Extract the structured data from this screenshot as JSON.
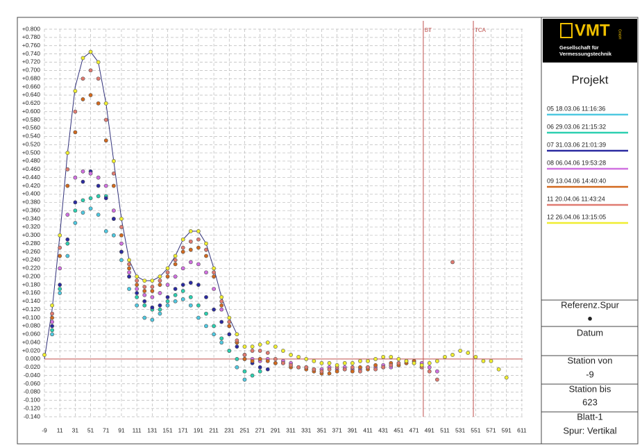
{
  "chart_data": {
    "type": "scatter",
    "x": [
      -9,
      1,
      11,
      21,
      31,
      41,
      51,
      61,
      71,
      81,
      91,
      101,
      111,
      121,
      131,
      141,
      151,
      161,
      171,
      181,
      191,
      201,
      211,
      221,
      231,
      241,
      251,
      261,
      271,
      281,
      291,
      301,
      311,
      321,
      331,
      341,
      351,
      361,
      371,
      381,
      391,
      401,
      411,
      421,
      431,
      441,
      451,
      461,
      471,
      481,
      491,
      501,
      511,
      521,
      531,
      541,
      551,
      561,
      571,
      581,
      591,
      601
    ],
    "xlim": [
      -9,
      621
    ],
    "ylim": [
      -0.14,
      0.8
    ],
    "xticks": [
      -9,
      11,
      31,
      51,
      71,
      91,
      111,
      131,
      151,
      171,
      191,
      211,
      231,
      251,
      271,
      291,
      311,
      331,
      351,
      371,
      391,
      411,
      431,
      451,
      471,
      491,
      511,
      531,
      551,
      571,
      591,
      611
    ],
    "yticks": [
      {
        "value": 0.8,
        "label": "+0.800"
      },
      {
        "value": 0.78,
        "label": "+0.780"
      },
      {
        "value": 0.76,
        "label": "+0.760"
      },
      {
        "value": 0.74,
        "label": "+0.740"
      },
      {
        "value": 0.72,
        "label": "+0.720"
      },
      {
        "value": 0.7,
        "label": "+0.700"
      },
      {
        "value": 0.68,
        "label": "+0.680"
      },
      {
        "value": 0.66,
        "label": "+0.660"
      },
      {
        "value": 0.64,
        "label": "+0.640"
      },
      {
        "value": 0.62,
        "label": "+0.620"
      },
      {
        "value": 0.6,
        "label": "+0.600"
      },
      {
        "value": 0.58,
        "label": "+0.580"
      },
      {
        "value": 0.56,
        "label": "+0.560"
      },
      {
        "value": 0.54,
        "label": "+0.540"
      },
      {
        "value": 0.52,
        "label": "+0.520"
      },
      {
        "value": 0.5,
        "label": "+0.500"
      },
      {
        "value": 0.48,
        "label": "+0.480"
      },
      {
        "value": 0.46,
        "label": "+0.460"
      },
      {
        "value": 0.44,
        "label": "+0.440"
      },
      {
        "value": 0.42,
        "label": "+0.420"
      },
      {
        "value": 0.4,
        "label": "+0.400"
      },
      {
        "value": 0.38,
        "label": "+0.380"
      },
      {
        "value": 0.36,
        "label": "+0.360"
      },
      {
        "value": 0.34,
        "label": "+0.340"
      },
      {
        "value": 0.32,
        "label": "+0.320"
      },
      {
        "value": 0.3,
        "label": "+0.300"
      },
      {
        "value": 0.28,
        "label": "+0.280"
      },
      {
        "value": 0.26,
        "label": "+0.260"
      },
      {
        "value": 0.24,
        "label": "+0.240"
      },
      {
        "value": 0.22,
        "label": "+0.220"
      },
      {
        "value": 0.2,
        "label": "+0.200"
      },
      {
        "value": 0.18,
        "label": "+0.180"
      },
      {
        "value": 0.16,
        "label": "+0.160"
      },
      {
        "value": 0.14,
        "label": "+0.140"
      },
      {
        "value": 0.12,
        "label": "+0.120"
      },
      {
        "value": 0.1,
        "label": "+0.100"
      },
      {
        "value": 0.08,
        "label": "+0.080"
      },
      {
        "value": 0.06,
        "label": "+0.060"
      },
      {
        "value": 0.04,
        "label": "+0.040"
      },
      {
        "value": 0.02,
        "label": "+0.020"
      },
      {
        "value": 0,
        "label": "0.000"
      },
      {
        "value": -0.02,
        "label": "-0.020"
      },
      {
        "value": -0.04,
        "label": "-0.040"
      },
      {
        "value": -0.06,
        "label": "-0.060"
      },
      {
        "value": -0.08,
        "label": "-0.080"
      },
      {
        "value": -0.1,
        "label": "-0.100"
      },
      {
        "value": -0.12,
        "label": "-0.120"
      },
      {
        "value": -0.14,
        "label": "-0.140"
      }
    ],
    "grid": true,
    "zero_line_color": "#c0504d",
    "markers": [
      {
        "label": "BT",
        "x": 483,
        "color": "#c0504d"
      },
      {
        "label": "TCA",
        "x": 548,
        "color": "#c0504d"
      }
    ],
    "reference": {
      "color": "#30307a",
      "x": [
        -9,
        1,
        11,
        21,
        31,
        41,
        51,
        61,
        71,
        81,
        91,
        101,
        111,
        121,
        131,
        141,
        151,
        161,
        171,
        181,
        191,
        201,
        211,
        221,
        231,
        241
      ],
      "values": [
        0,
        0.12,
        0.3,
        0.5,
        0.66,
        0.73,
        0.745,
        0.72,
        0.62,
        0.48,
        0.34,
        0.24,
        0.2,
        0.19,
        0.19,
        0.2,
        0.22,
        0.25,
        0.29,
        0.31,
        0.31,
        0.28,
        0.22,
        0.15,
        0.1,
        0.06
      ]
    },
    "series": [
      {
        "name": "05 18.03.06 11:16:36",
        "color": "#4fc8e0",
        "values": [
          null,
          0.06,
          0.16,
          0.25,
          0.33,
          0.355,
          0.365,
          0.35,
          0.31,
          0.3,
          0.24,
          0.17,
          0.13,
          0.1,
          0.095,
          0.11,
          0.13,
          0.14,
          0.145,
          0.13,
          0.1,
          0.08,
          0.06,
          0.04,
          0.02,
          -0.02,
          -0.05,
          null,
          null,
          null,
          null,
          null,
          null,
          null,
          null,
          null,
          null,
          null,
          null,
          null,
          null,
          null,
          null,
          null,
          null,
          null,
          null,
          null,
          null,
          null,
          null,
          null,
          null,
          null,
          null,
          null,
          null,
          null,
          null,
          null,
          null,
          null
        ]
      },
      {
        "name": "06 29.03.06 21:15:32",
        "color": "#2ccfb0",
        "values": [
          null,
          0.07,
          0.17,
          0.28,
          0.36,
          0.385,
          0.39,
          0.395,
          0.395,
          0.34,
          0.26,
          0.2,
          0.15,
          0.13,
          0.12,
          0.12,
          0.14,
          0.155,
          0.165,
          0.15,
          0.13,
          0.11,
          0.08,
          0.05,
          0.02,
          0,
          -0.03,
          -0.04,
          -0.03,
          null,
          null,
          null,
          null,
          null,
          null,
          null,
          null,
          null,
          null,
          null,
          null,
          null,
          null,
          null,
          null,
          null,
          null,
          null,
          null,
          null,
          null,
          null,
          null,
          null,
          null,
          null,
          null,
          null,
          null,
          null,
          null,
          null
        ]
      },
      {
        "name": "07 31.03.06 21:01:39",
        "color": "#2a2aa0",
        "values": [
          null,
          0.08,
          0.18,
          0.29,
          0.38,
          0.43,
          0.455,
          0.42,
          0.39,
          0.34,
          0.26,
          0.2,
          0.16,
          0.14,
          0.125,
          0.13,
          0.15,
          0.17,
          0.18,
          0.185,
          0.18,
          0.15,
          0.12,
          0.09,
          0.06,
          0.03,
          0,
          -0.01,
          -0.02,
          -0.025,
          null,
          null,
          null,
          null,
          null,
          null,
          null,
          null,
          null,
          null,
          null,
          null,
          null,
          null,
          null,
          null,
          null,
          null,
          null,
          null,
          null,
          null,
          null,
          null,
          null,
          null,
          null,
          null,
          null,
          null,
          null,
          null
        ]
      },
      {
        "name": "08 06.04.06 19:53:28",
        "color": "#d070e0",
        "values": [
          null,
          0.09,
          0.22,
          0.35,
          0.44,
          0.455,
          0.45,
          0.44,
          0.42,
          0.36,
          0.28,
          0.21,
          0.17,
          0.155,
          0.15,
          0.16,
          0.18,
          0.2,
          0.22,
          0.235,
          0.23,
          0.21,
          0.17,
          0.12,
          0.08,
          0.04,
          0.01,
          0,
          -0.005,
          0,
          -0.01,
          -0.005,
          -0.01,
          -0.02,
          -0.02,
          -0.025,
          -0.025,
          -0.02,
          -0.025,
          -0.02,
          -0.025,
          -0.025,
          -0.02,
          -0.02,
          -0.015,
          -0.02,
          -0.015,
          -0.01,
          -0.005,
          -0.01,
          -0.02,
          -0.03,
          null,
          null,
          null,
          null,
          null,
          null,
          null,
          null,
          null,
          null
        ]
      },
      {
        "name": "09 13.04.06 14:40:40",
        "color": "#d2691e",
        "values": [
          null,
          0.1,
          0.25,
          0.42,
          0.55,
          0.63,
          0.64,
          0.62,
          0.53,
          0.42,
          0.3,
          0.22,
          0.18,
          0.165,
          0.165,
          0.18,
          0.2,
          0.23,
          0.26,
          0.265,
          0.27,
          0.25,
          0.2,
          0.13,
          0.08,
          0.04,
          0,
          -0.005,
          0,
          -0.005,
          -0.01,
          -0.01,
          -0.02,
          -0.02,
          -0.025,
          -0.03,
          -0.035,
          -0.035,
          -0.03,
          -0.025,
          -0.03,
          -0.02,
          -0.025,
          -0.015,
          -0.02,
          -0.01,
          -0.015,
          -0.01,
          -0.005,
          -0.02,
          null,
          null,
          null,
          null,
          null,
          null,
          null,
          null,
          null,
          null,
          null,
          null
        ]
      },
      {
        "name": "11 20.04.06 11:43:24",
        "color": "#e07a70",
        "values": [
          null,
          0.11,
          0.27,
          0.46,
          0.6,
          0.68,
          0.7,
          0.68,
          0.58,
          0.45,
          0.32,
          0.23,
          0.19,
          0.175,
          0.175,
          0.19,
          0.21,
          0.24,
          0.27,
          0.285,
          0.29,
          0.265,
          0.21,
          0.14,
          0.09,
          0.045,
          0.01,
          0.02,
          0.02,
          0.015,
          0,
          -0.01,
          -0.015,
          -0.02,
          -0.02,
          -0.025,
          -0.03,
          -0.025,
          -0.02,
          -0.025,
          -0.02,
          -0.03,
          -0.02,
          -0.025,
          -0.02,
          -0.015,
          -0.01,
          -0.005,
          -0.01,
          -0.02,
          -0.03,
          -0.05,
          null,
          0.235,
          null,
          null,
          null,
          null,
          null,
          null,
          null,
          null
        ]
      },
      {
        "name": "12 26.04.06 13:15:05",
        "color": "#f0ee30",
        "values": [
          0.01,
          0.13,
          0.3,
          0.5,
          0.65,
          0.73,
          0.745,
          0.72,
          0.62,
          0.48,
          0.34,
          0.24,
          0.2,
          0.19,
          0.19,
          0.2,
          0.22,
          0.25,
          0.29,
          0.31,
          0.31,
          0.28,
          0.22,
          0.15,
          0.1,
          0.06,
          0.03,
          0.03,
          0.035,
          0.04,
          0.03,
          0.02,
          0.01,
          0.005,
          0,
          -0.005,
          -0.01,
          -0.01,
          -0.015,
          -0.01,
          -0.01,
          -0.005,
          -0.005,
          0,
          0.005,
          0.005,
          0,
          -0.005,
          -0.01,
          -0.015,
          -0.01,
          -0.005,
          0.005,
          0.01,
          0.02,
          0.015,
          0.005,
          -0.005,
          -0.005,
          -0.025,
          -0.045,
          null
        ]
      }
    ]
  },
  "panel": {
    "logo": "VMT",
    "logo_small": "GmbH",
    "company": [
      "Gesellschaft für",
      "Vermessungstechnik"
    ],
    "title": "Projekt",
    "boxes": [
      "Referenz.Spur",
      "●",
      "Datum",
      "Station von",
      "-9",
      "Station bis",
      "623",
      "Blatt-1",
      "Spur: Vertikal"
    ]
  }
}
